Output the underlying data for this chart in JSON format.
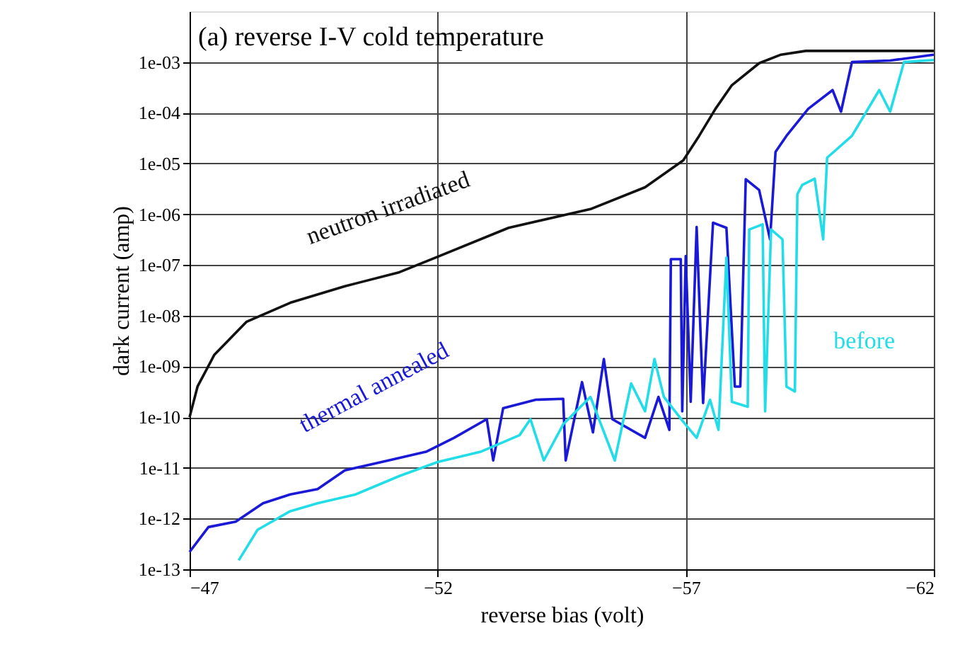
{
  "chart_data": {
    "type": "line",
    "title": "(a) reverse I-V cold temperature",
    "xlabel": "reverse bias (volt)",
    "ylabel": "dark current (amp)",
    "log": "y",
    "grid": true,
    "marker": "none",
    "line_style": "solid",
    "xlim": [
      -47,
      -62
    ],
    "xticks": [
      -47,
      -52,
      -57,
      -62
    ],
    "ylim": [
      1e-13,
      0.01
    ],
    "yticks": [
      {
        "value": 1e-13,
        "label": "1e-13"
      },
      {
        "value": 1e-12,
        "label": "1e-12"
      },
      {
        "value": 1e-11,
        "label": "1e-11"
      },
      {
        "value": 1e-10,
        "label": "1e-10"
      },
      {
        "value": 1e-09,
        "label": "1e-09"
      },
      {
        "value": 1e-08,
        "label": "1e-08"
      },
      {
        "value": 1e-07,
        "label": "1e-07"
      },
      {
        "value": 1e-06,
        "label": "1e-06"
      },
      {
        "value": 1e-05,
        "label": "1e-05"
      },
      {
        "value": 0.0001,
        "label": "1e-04"
      },
      {
        "value": 0.001,
        "label": "1e-03"
      }
    ],
    "series": [
      {
        "name": "neutron irradiated",
        "color": "#111111",
        "x": [
          -47,
          -47.16,
          -47.5,
          -48.15,
          -49.03,
          -50.13,
          -51.23,
          -52,
          -53.43,
          -55.08,
          -56.18,
          -56.95,
          -57.27,
          -57.6,
          -57.93,
          -58.48,
          -58.92,
          -59.42,
          -62
        ],
        "values": [
          1e-10,
          4e-10,
          1.7e-09,
          7.6e-09,
          1.8e-08,
          3.8e-08,
          7.2e-08,
          1.45e-07,
          5.4e-07,
          1.26e-06,
          3.4e-06,
          1.15e-05,
          3.5e-05,
          0.00012,
          0.00035,
          0.00095,
          0.0014,
          0.00166,
          0.00166
        ]
      },
      {
        "name": "thermal annealed",
        "color": "#1a1ad6",
        "x": [
          -47,
          -47.38,
          -47.93,
          -48.48,
          -49.03,
          -49.58,
          -50.13,
          -51.01,
          -51.78,
          -52.33,
          -52.99,
          -53.12,
          -53.32,
          -53.98,
          -54.53,
          -54.58,
          -54.91,
          -55.13,
          -55.35,
          -55.52,
          -56.18,
          -56.45,
          -56.67,
          -56.7,
          -56.9,
          -56.93,
          -57.0,
          -57.1,
          -57.22,
          -57.35,
          -57.55,
          -57.82,
          -57.99,
          -58.1,
          -58.21,
          -58.48,
          -58.7,
          -58.81,
          -59.03,
          -59.47,
          -59.96,
          -60.13,
          -60.35,
          -61.12,
          -62
        ],
        "values": [
          2.2e-13,
          6.8e-13,
          8.7e-13,
          2e-12,
          3e-12,
          3.8e-12,
          8.9e-12,
          1.4e-11,
          2.1e-11,
          3.9e-11,
          9.1e-11,
          1.4e-11,
          1.5e-10,
          2.2e-10,
          2.3e-10,
          1.4e-11,
          4.9e-10,
          5e-11,
          1.4e-09,
          9.1e-11,
          3.9e-11,
          2.5e-10,
          5.6e-11,
          1.3e-07,
          1.3e-07,
          1.3e-10,
          1.5e-07,
          2e-10,
          5.6e-07,
          1.9e-10,
          6.8e-07,
          5.4e-07,
          4e-10,
          4e-10,
          4.9e-06,
          3e-06,
          3.2e-07,
          1.7e-05,
          3.5e-05,
          0.00012,
          0.00028,
          0.000105,
          0.001,
          0.00107,
          0.0014
        ]
      },
      {
        "name": "before",
        "color": "#22dde8",
        "x": [
          -47.99,
          -48.37,
          -49.03,
          -49.58,
          -50.35,
          -51.23,
          -52,
          -52.88,
          -53.65,
          -53.87,
          -54.14,
          -54.53,
          -55.08,
          -55.57,
          -55.9,
          -56.18,
          -56.37,
          -56.56,
          -56.95,
          -57.22,
          -57.49,
          -57.66,
          -57.82,
          -57.93,
          -58.25,
          -58.28,
          -58.55,
          -58.6,
          -58.72,
          -58.95,
          -59.03,
          -59.2,
          -59.25,
          -59.35,
          -59.6,
          -59.77,
          -59.85,
          -60.35,
          -60.9,
          -61.12,
          -61.4,
          -62
        ],
        "values": [
          1.5e-13,
          6e-13,
          1.4e-12,
          2e-12,
          3e-12,
          6.9e-12,
          1.3e-11,
          2.1e-11,
          4.4e-11,
          9.1e-11,
          1.4e-11,
          7.2e-11,
          2.5e-10,
          1.4e-11,
          4.6e-10,
          1.3e-10,
          1.4e-09,
          2.5e-10,
          8.1e-11,
          3.9e-11,
          2.2e-10,
          5.6e-11,
          1.4e-07,
          2e-10,
          1.6e-10,
          5e-07,
          6.3e-07,
          1.3e-10,
          5e-07,
          3.2e-07,
          4e-10,
          3.2e-10,
          2.5e-06,
          3.8e-06,
          5e-06,
          3.2e-07,
          1.3e-05,
          3.5e-05,
          0.00028,
          0.000105,
          0.001,
          0.0011
        ]
      }
    ]
  }
}
